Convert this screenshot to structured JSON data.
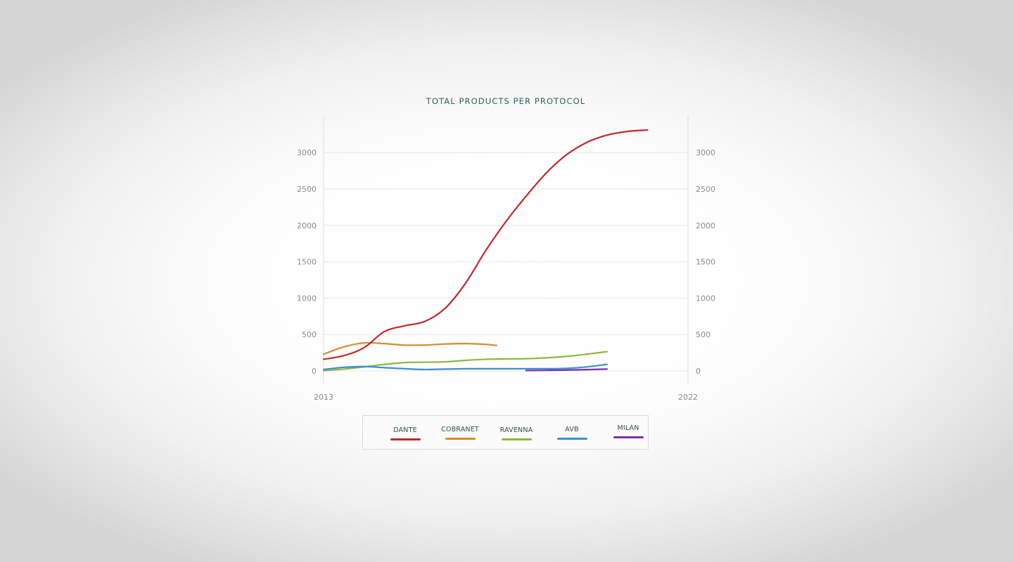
{
  "chart_data": {
    "type": "line",
    "title": "TOTAL PRODUCTS PER PROTOCOL",
    "xlabel": "",
    "ylabel": "",
    "x_tick_labels": [
      "2013",
      "2022"
    ],
    "y_tick_labels": [
      "0",
      "500",
      "1000",
      "1500",
      "2000",
      "2500",
      "3000"
    ],
    "xlim": [
      2013,
      2022
    ],
    "ylim": [
      0,
      3500
    ],
    "grid": true,
    "legend_position": "bottom",
    "series": [
      {
        "name": "DANTE",
        "color": "#c0282d",
        "points": [
          [
            2013.0,
            160
          ],
          [
            2013.5,
            210
          ],
          [
            2014.0,
            320
          ],
          [
            2014.5,
            540
          ],
          [
            2015.0,
            620
          ],
          [
            2015.5,
            680
          ],
          [
            2016.0,
            860
          ],
          [
            2016.5,
            1200
          ],
          [
            2017.0,
            1650
          ],
          [
            2017.5,
            2050
          ],
          [
            2018.0,
            2400
          ],
          [
            2018.5,
            2720
          ],
          [
            2019.0,
            2970
          ],
          [
            2019.5,
            3140
          ],
          [
            2020.0,
            3240
          ],
          [
            2020.5,
            3290
          ],
          [
            2021.0,
            3310
          ]
        ]
      },
      {
        "name": "COBRANET",
        "color": "#d98a2b",
        "points": [
          [
            2013.0,
            230
          ],
          [
            2013.5,
            330
          ],
          [
            2014.0,
            385
          ],
          [
            2014.5,
            375
          ],
          [
            2015.0,
            355
          ],
          [
            2015.5,
            355
          ],
          [
            2016.0,
            370
          ],
          [
            2016.5,
            375
          ],
          [
            2017.0,
            365
          ],
          [
            2017.27,
            350
          ]
        ]
      },
      {
        "name": "RAVENNA",
        "color": "#8cb83f",
        "points": [
          [
            2013.0,
            5
          ],
          [
            2013.5,
            25
          ],
          [
            2014.0,
            55
          ],
          [
            2014.5,
            90
          ],
          [
            2015.0,
            115
          ],
          [
            2015.5,
            120
          ],
          [
            2016.0,
            125
          ],
          [
            2016.5,
            145
          ],
          [
            2017.0,
            160
          ],
          [
            2017.5,
            165
          ],
          [
            2018.0,
            168
          ],
          [
            2018.5,
            180
          ],
          [
            2019.0,
            200
          ],
          [
            2019.5,
            230
          ],
          [
            2020.0,
            265
          ]
        ]
      },
      {
        "name": "AVB",
        "color": "#3b8fd2",
        "points": [
          [
            2013.0,
            20
          ],
          [
            2013.5,
            50
          ],
          [
            2014.0,
            60
          ],
          [
            2014.5,
            45
          ],
          [
            2015.0,
            30
          ],
          [
            2015.5,
            20
          ],
          [
            2016.0,
            25
          ],
          [
            2016.5,
            30
          ],
          [
            2017.0,
            30
          ],
          [
            2017.5,
            30
          ],
          [
            2018.0,
            30
          ],
          [
            2018.5,
            30
          ],
          [
            2019.0,
            35
          ],
          [
            2019.5,
            55
          ],
          [
            2020.0,
            90
          ]
        ]
      },
      {
        "name": "MILAN",
        "color": "#7d2fb0",
        "points": [
          [
            2018.0,
            5
          ],
          [
            2018.5,
            8
          ],
          [
            2019.0,
            12
          ],
          [
            2019.5,
            18
          ],
          [
            2020.0,
            25
          ]
        ]
      }
    ]
  }
}
